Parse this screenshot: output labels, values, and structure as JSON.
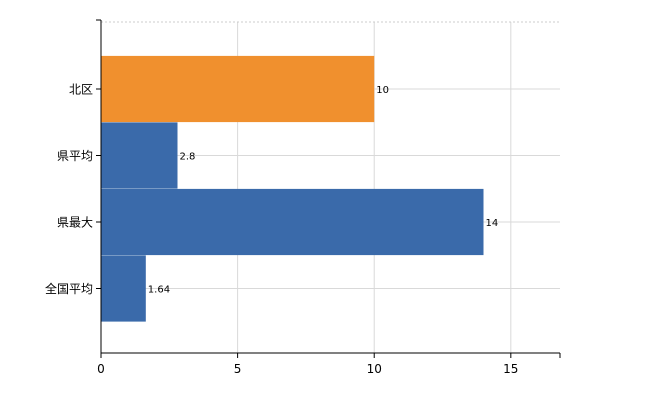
{
  "chart_data": {
    "type": "bar",
    "orientation": "horizontal",
    "categories": [
      "北区",
      "県平均",
      "県最大",
      "全国平均"
    ],
    "values": [
      10,
      2.8,
      14,
      1.64
    ],
    "value_labels": [
      "10",
      "2.8",
      "14",
      "1.64"
    ],
    "highlight_index": 0,
    "colors": {
      "default": "#3a6aaa",
      "highlight": "#f0902e"
    },
    "xlim": [
      0,
      16.8
    ],
    "xticks": [
      "0",
      "5",
      "10",
      "15"
    ],
    "grid": true,
    "legend": "none",
    "title": "",
    "xlabel": "",
    "ylabel": ""
  }
}
